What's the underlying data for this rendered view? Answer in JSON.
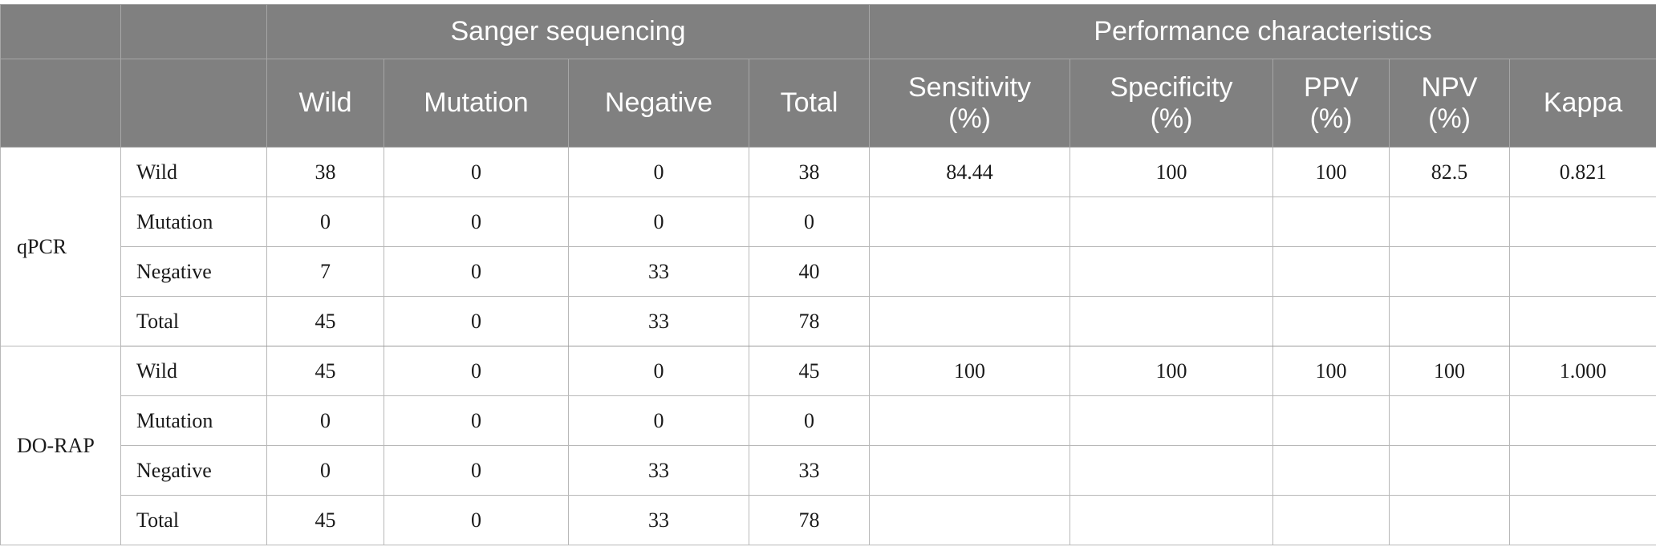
{
  "header": {
    "group_sanger": "Sanger sequencing",
    "group_performance": "Performance characteristics",
    "col_wild": "Wild",
    "col_mutation": "Mutation",
    "col_negative": "Negative",
    "col_total": "Total",
    "col_sensitivity_line1": "Sensitivity",
    "col_sensitivity_line2": "(%)",
    "col_specificity_line1": "Specificity",
    "col_specificity_line2": "(%)",
    "col_ppv_line1": "PPV",
    "col_ppv_line2": "(%)",
    "col_npv_line1": "NPV",
    "col_npv_line2": "(%)",
    "col_kappa": "Kappa"
  },
  "groups": [
    {
      "name": "qPCR",
      "rows": [
        {
          "label": "Wild",
          "wild": "38",
          "mutation": "0",
          "negative": "0",
          "total": "38"
        },
        {
          "label": "Mutation",
          "wild": "0",
          "mutation": "0",
          "negative": "0",
          "total": "0"
        },
        {
          "label": "Negative",
          "wild": "7",
          "mutation": "0",
          "negative": "33",
          "total": "40"
        },
        {
          "label": "Total",
          "wild": "45",
          "mutation": "0",
          "negative": "33",
          "total": "78"
        }
      ],
      "performance": {
        "sensitivity": "84.44",
        "specificity": "100",
        "ppv": "100",
        "npv": "82.5",
        "kappa": "0.821"
      }
    },
    {
      "name": "DO-RAP",
      "rows": [
        {
          "label": "Wild",
          "wild": "45",
          "mutation": "0",
          "negative": "0",
          "total": "45"
        },
        {
          "label": "Mutation",
          "wild": "0",
          "mutation": "0",
          "negative": "0",
          "total": "0"
        },
        {
          "label": "Negative",
          "wild": "0",
          "mutation": "0",
          "negative": "33",
          "total": "33"
        },
        {
          "label": "Total",
          "wild": "45",
          "mutation": "0",
          "negative": "33",
          "total": "78"
        }
      ],
      "performance": {
        "sensitivity": "100",
        "specificity": "100",
        "ppv": "100",
        "npv": "100",
        "kappa": "1.000"
      }
    }
  ]
}
